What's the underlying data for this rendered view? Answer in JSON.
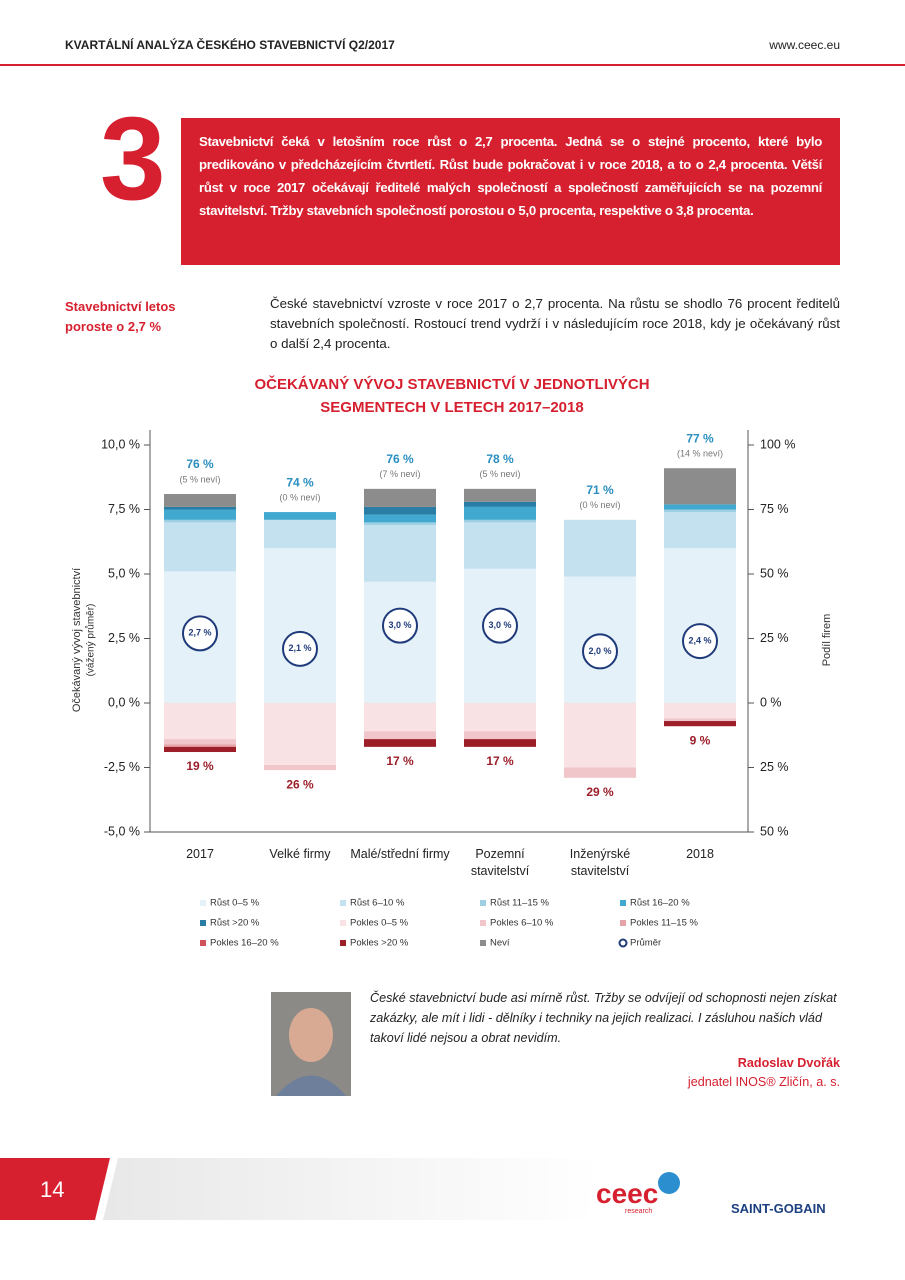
{
  "header": {
    "title": "KVARTÁLNÍ ANALÝZA ČESKÉHO STAVEBNICTVÍ Q2/2017",
    "url": "www.ceec.eu"
  },
  "highlight": {
    "number": "3",
    "text": "Stavebnictví čeká v letošním roce růst o 2,7 procenta. Jedná se o stejné procento, které bylo predikováno v předcházejícím čtvrtletí. Růst bude pokračovat i v roce 2018, a to o 2,4 procenta. Větší růst v roce 2017 očekávají ředitelé malých společností a společností zaměřujících se na pozemní stavitelství. Tržby stavebních společností porostou o 5,0 procenta, respektive o 3,8 procenta."
  },
  "sidebar": {
    "heading": "Stavebnictví letos poroste o 2,7 %"
  },
  "intro": "České stavebnictví vzroste v roce 2017 o 2,7 procenta. Na růstu se shodlo 76 procent ředitelů stavebních společností. Rostoucí trend vydrží i v následujícím roce 2018, kdy je očekávaný růst o další 2,4 procenta.",
  "chart_data": {
    "type": "bar",
    "stacked": true,
    "title": "OČEKÁVANÝ VÝVOJ STAVEBNICTVÍ V JEDNOTLIVÝCH SEGMENTECH V LETECH 2017–2018",
    "ylabel": "Očekávaný vývoj stavebnictví",
    "ylabel_note": "(vážený průměr)",
    "y2label": "Podíl firem",
    "categories": [
      "2017",
      "Velké firmy",
      "Malé/střední firmy",
      "Pozemní stavitelství",
      "Inženýrské stavitelství",
      "2018"
    ],
    "ylim": [
      -5,
      10
    ],
    "yticks": [
      {
        "value": -5,
        "label": "-5,0 %"
      },
      {
        "value": -2.5,
        "label": "-2,5 %"
      },
      {
        "value": 0,
        "label": "0,0 %"
      },
      {
        "value": 2.5,
        "label": "2,5 %"
      },
      {
        "value": 5,
        "label": "5,0 %"
      },
      {
        "value": 7.5,
        "label": "7,5 %"
      },
      {
        "value": 10,
        "label": "10,0 %"
      }
    ],
    "y2lim": [
      -50,
      100
    ],
    "y2ticks": [
      {
        "value": -50,
        "label": "50 %"
      },
      {
        "value": -25,
        "label": "25 %"
      },
      {
        "value": 0,
        "label": "0 %"
      },
      {
        "value": 25,
        "label": "25 %"
      },
      {
        "value": 50,
        "label": "50 %"
      },
      {
        "value": 75,
        "label": "75 %"
      },
      {
        "value": 100,
        "label": "100 %"
      }
    ],
    "series": [
      {
        "name": "Růst 0–5 %",
        "color": "#e4f1f9",
        "axis": "y2",
        "values": [
          51,
          60,
          47,
          52,
          49,
          60
        ]
      },
      {
        "name": "Růst 6–10 %",
        "color": "#c4e1ef",
        "axis": "y2",
        "values": [
          19,
          11,
          22,
          18,
          22,
          14
        ]
      },
      {
        "name": "Růst 11–15 %",
        "color": "#9fcfe2",
        "axis": "y2",
        "values": [
          1,
          0,
          1,
          1,
          0,
          1
        ]
      },
      {
        "name": "Růst 16–20 %",
        "color": "#41a8cf",
        "axis": "y2",
        "values": [
          4,
          3,
          3,
          5,
          0,
          2
        ]
      },
      {
        "name": "Růst >20 %",
        "color": "#2a7ea6",
        "axis": "y2",
        "values": [
          1,
          0,
          3,
          2,
          0,
          0
        ]
      },
      {
        "name": "Pokles 0–5 %",
        "color": "#f8e2e4",
        "axis": "y2",
        "values": [
          -14,
          -24,
          -11,
          -11,
          -25,
          -6
        ]
      },
      {
        "name": "Pokles 6–10 %",
        "color": "#f0c6ca",
        "axis": "y2",
        "values": [
          -2,
          -2,
          -3,
          -3,
          -4,
          -1
        ]
      },
      {
        "name": "Pokles 11–15 %",
        "color": "#e5a2a8",
        "axis": "y2",
        "values": [
          -1,
          0,
          0,
          0,
          0,
          0
        ]
      },
      {
        "name": "Pokles 16–20 %",
        "color": "#d1515b",
        "axis": "y2",
        "values": [
          0,
          0,
          0,
          0,
          0,
          0
        ]
      },
      {
        "name": "Pokles >20 %",
        "color": "#9b1e29",
        "axis": "y2",
        "values": [
          -2,
          0,
          -3,
          -3,
          0,
          -2
        ]
      },
      {
        "name": "Neví",
        "color": "#8c8c8c",
        "axis": "y2",
        "values": [
          5,
          0,
          7,
          5,
          0,
          14
        ]
      },
      {
        "name": "Průměr",
        "color": "#1f3a7a",
        "axis": "y",
        "marker": "circle",
        "values": [
          2.7,
          2.1,
          3.0,
          3.0,
          2.0,
          2.4
        ],
        "value_labels": [
          "2,7 %",
          "2,1 %",
          "3,0 %",
          "3,0 %",
          "2,0 %",
          "2,4 %"
        ]
      }
    ],
    "growth_totals": [
      76,
      74,
      76,
      78,
      71,
      77
    ],
    "growth_labels": [
      "76 %",
      "74 %",
      "76 %",
      "78 %",
      "71 %",
      "77 %"
    ],
    "dont_know_labels": [
      "(5 % neví)",
      "(0 % neví)",
      "(7 % neví)",
      "(5 % neví)",
      "(0 % neví)",
      "(14 % neví)"
    ],
    "decline_totals": [
      -19,
      -26,
      -17,
      -17,
      -29,
      -9
    ],
    "decline_labels": [
      "19 %",
      "26 %",
      "17 %",
      "17 %",
      "29 %",
      "9 %"
    ]
  },
  "quote": {
    "text": "České stavebnictví bude asi mírně růst. Tržby se odvíjejí od schopnosti nejen získat zakázky, ale mít i lidi - dělníky i techniky na jejich realizaci. I zásluhou našich vlád takoví lidé nejsou a obrat nevidím.",
    "author": "Radoslav Dvořák",
    "role": "jednatel INOS® Zličín, a. s."
  },
  "footer": {
    "page": "14",
    "logo_ceec": "ceec",
    "logo_ceec_sub": "research",
    "logo_sg": "SAINT-GOBAIN"
  }
}
